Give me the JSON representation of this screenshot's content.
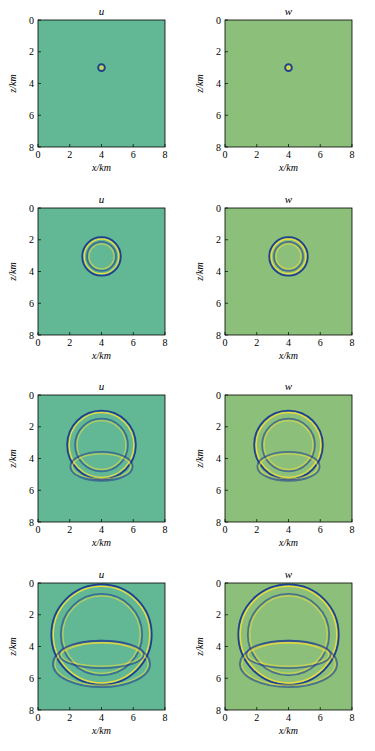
{
  "chart_data": [
    {
      "type": "wavefield",
      "title": "u",
      "xlabel": "x/km",
      "ylabel": "z/km",
      "xlim": [
        0,
        8
      ],
      "ylim": [
        8,
        0
      ],
      "xticks": [
        0,
        2,
        4,
        6,
        8
      ],
      "yticks": [
        0,
        2,
        4,
        6,
        8
      ],
      "color": "#62b894",
      "wavefronts": [
        {
          "x": 4,
          "z": 3,
          "rx": 0.15,
          "rz": 0.15
        }
      ]
    },
    {
      "type": "wavefield",
      "title": "w",
      "xlabel": "x/km",
      "ylabel": "z/km",
      "xlim": [
        0,
        8
      ],
      "ylim": [
        8,
        0
      ],
      "xticks": [
        0,
        2,
        4,
        6,
        8
      ],
      "yticks": [
        0,
        2,
        4,
        6,
        8
      ],
      "color": "#8cc07a",
      "wavefronts": [
        {
          "x": 4,
          "z": 3,
          "rx": 0.15,
          "rz": 0.15
        }
      ]
    },
    {
      "type": "wavefield",
      "title": "u",
      "xlabel": "x/km",
      "ylabel": "z/km",
      "xlim": [
        0,
        8
      ],
      "ylim": [
        8,
        0
      ],
      "xticks": [
        0,
        2,
        4,
        6,
        8
      ],
      "yticks": [
        0,
        2,
        4,
        6,
        8
      ],
      "color": "#62b894",
      "wavefronts": [
        {
          "x": 4,
          "z": 3.05,
          "rx": 1.15,
          "rz": 1.15
        },
        {
          "x": 4,
          "z": 3.05,
          "rx": 0.85,
          "rz": 0.85
        }
      ]
    },
    {
      "type": "wavefield",
      "title": "w",
      "xlabel": "x/km",
      "ylabel": "z/km",
      "xlim": [
        0,
        8
      ],
      "ylim": [
        8,
        0
      ],
      "xticks": [
        0,
        2,
        4,
        6,
        8
      ],
      "yticks": [
        0,
        2,
        4,
        6,
        8
      ],
      "color": "#8cc07a",
      "wavefronts": [
        {
          "x": 4,
          "z": 3.05,
          "rx": 1.15,
          "rz": 1.15
        },
        {
          "x": 4,
          "z": 3.05,
          "rx": 0.85,
          "rz": 0.85
        }
      ]
    },
    {
      "type": "wavefield",
      "title": "u",
      "xlabel": "x/km",
      "ylabel": "z/km",
      "xlim": [
        0,
        8
      ],
      "ylim": [
        8,
        0
      ],
      "xticks": [
        0,
        2,
        4,
        6,
        8
      ],
      "yticks": [
        0,
        2,
        4,
        6,
        8
      ],
      "color": "#62b894",
      "wavefronts": [
        {
          "x": 4,
          "z": 3.15,
          "rx": 2.1,
          "rz": 2.1
        },
        {
          "x": 4,
          "z": 3.15,
          "rx": 1.6,
          "rz": 1.6
        },
        {
          "x": 4,
          "z": 4.5,
          "rx": 1.9,
          "rz": 0.85
        }
      ]
    },
    {
      "type": "wavefield",
      "title": "w",
      "xlabel": "x/km",
      "ylabel": "z/km",
      "xlim": [
        0,
        8
      ],
      "ylim": [
        8,
        0
      ],
      "xticks": [
        0,
        2,
        4,
        6,
        8
      ],
      "yticks": [
        0,
        2,
        4,
        6,
        8
      ],
      "color": "#8cc07a",
      "wavefronts": [
        {
          "x": 4,
          "z": 3.15,
          "rx": 2.1,
          "rz": 2.1
        },
        {
          "x": 4,
          "z": 3.15,
          "rx": 1.6,
          "rz": 1.6
        },
        {
          "x": 4,
          "z": 4.5,
          "rx": 1.9,
          "rz": 0.85
        }
      ]
    },
    {
      "type": "wavefield",
      "title": "u",
      "xlabel": "x/km",
      "ylabel": "z/km",
      "xlim": [
        0,
        8
      ],
      "ylim": [
        8,
        0
      ],
      "xticks": [
        0,
        2,
        4,
        6,
        8
      ],
      "yticks": [
        0,
        2,
        4,
        6,
        8
      ],
      "color": "#62b894",
      "wavefronts": [
        {
          "x": 4,
          "z": 3.25,
          "rx": 3.1,
          "rz": 3.1
        },
        {
          "x": 4,
          "z": 3.25,
          "rx": 2.5,
          "rz": 2.5
        },
        {
          "x": 4,
          "z": 5.1,
          "rx": 3,
          "rz": 1.4
        },
        {
          "x": 4,
          "z": 4.5,
          "rx": 2.6,
          "rz": 0.8
        }
      ]
    },
    {
      "type": "wavefield",
      "title": "w",
      "xlabel": "x/km",
      "ylabel": "z/km",
      "xlim": [
        0,
        8
      ],
      "ylim": [
        8,
        0
      ],
      "xticks": [
        0,
        2,
        4,
        6,
        8
      ],
      "yticks": [
        0,
        2,
        4,
        6,
        8
      ],
      "color": "#8cc07a",
      "wavefronts": [
        {
          "x": 4,
          "z": 3.25,
          "rx": 3.1,
          "rz": 3.1
        },
        {
          "x": 4,
          "z": 3.25,
          "rx": 2.5,
          "rz": 2.5
        },
        {
          "x": 4,
          "z": 5.1,
          "rx": 3,
          "rz": 1.4
        },
        {
          "x": 4,
          "z": 4.5,
          "rx": 2.6,
          "rz": 0.8
        }
      ]
    }
  ]
}
